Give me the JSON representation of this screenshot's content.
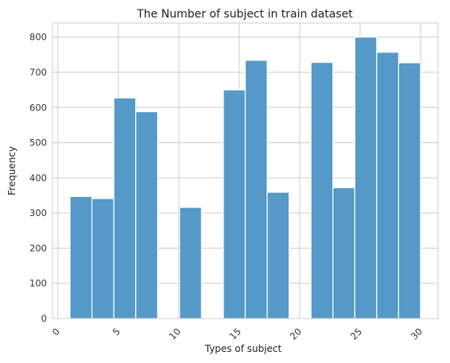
{
  "chart_data": {
    "type": "bar",
    "title": "The Number of subject in train dataset",
    "xlabel": "Types of subject",
    "ylabel": "Frequency",
    "bin_width": 1.8125,
    "bins": [
      {
        "start": 1.0,
        "value": 347
      },
      {
        "start": 2.8125,
        "value": 341
      },
      {
        "start": 4.625,
        "value": 627
      },
      {
        "start": 6.4375,
        "value": 588
      },
      {
        "start": 8.25,
        "value": 0
      },
      {
        "start": 10.0625,
        "value": 316
      },
      {
        "start": 11.875,
        "value": 0
      },
      {
        "start": 13.6875,
        "value": 650
      },
      {
        "start": 15.5,
        "value": 734
      },
      {
        "start": 17.3125,
        "value": 359
      },
      {
        "start": 19.125,
        "value": 0
      },
      {
        "start": 20.9375,
        "value": 728
      },
      {
        "start": 22.75,
        "value": 372
      },
      {
        "start": 24.5625,
        "value": 800
      },
      {
        "start": 26.375,
        "value": 757
      },
      {
        "start": 28.1875,
        "value": 727
      }
    ],
    "xlim": [
      -0.45,
      31.45
    ],
    "ylim": [
      0,
      840
    ],
    "xticks": [
      0,
      5,
      10,
      15,
      20,
      25,
      30
    ],
    "yticks": [
      0,
      100,
      200,
      300,
      400,
      500,
      600,
      700,
      800
    ],
    "xtick_rotation": -45,
    "grid": true,
    "bar_color": "#5499c7",
    "grid_color": "#cccccc"
  }
}
